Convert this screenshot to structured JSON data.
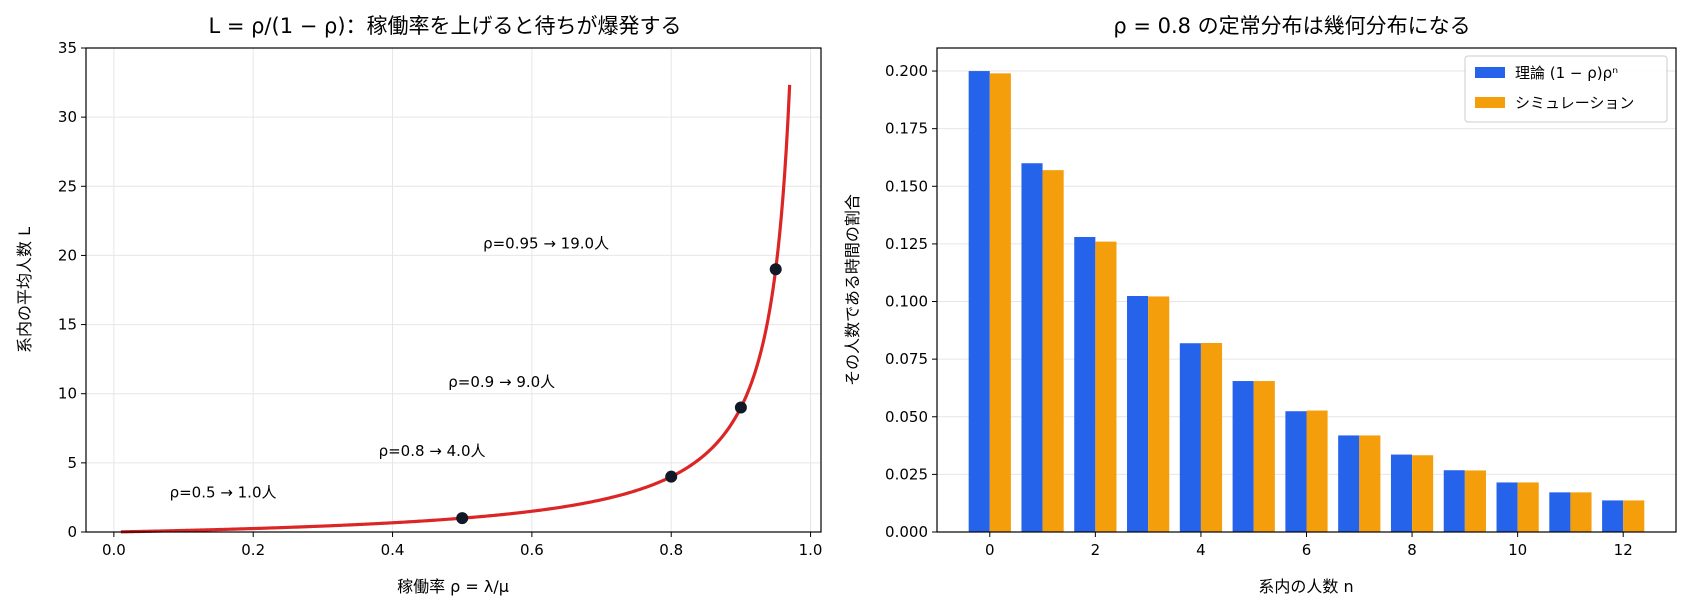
{
  "chart_data": [
    {
      "type": "line",
      "title": "L = ρ/(1 − ρ)：稼働率を上げると待ちが爆発する",
      "xlabel": "稼働率 ρ = λ/μ",
      "ylabel": "系内の平均人数 L",
      "xlim": [
        -0.04,
        1.015
      ],
      "ylim": [
        0,
        35
      ],
      "xticks": [
        "0.0",
        "0.2",
        "0.4",
        "0.6",
        "0.8",
        "1.0"
      ],
      "yticks": [
        "0",
        "5",
        "10",
        "15",
        "20",
        "25",
        "30",
        "35"
      ],
      "grid": true,
      "curve_color": "#dc2626",
      "curve_x_range": [
        0.01,
        0.97
      ],
      "points": [
        {
          "x": 0.5,
          "y": 1.0,
          "label": "ρ=0.5 → 1.0人",
          "label_x": 0.08,
          "label_y": 2.5
        },
        {
          "x": 0.8,
          "y": 4.0,
          "label": "ρ=0.8 → 4.0人",
          "label_x": 0.38,
          "label_y": 5.5
        },
        {
          "x": 0.9,
          "y": 9.0,
          "label": "ρ=0.9 → 9.0人",
          "label_x": 0.48,
          "label_y": 10.5
        },
        {
          "x": 0.95,
          "y": 19.0,
          "label": "ρ=0.95 → 19.0人",
          "label_x": 0.53,
          "label_y": 20.5
        }
      ],
      "point_color": "#111827"
    },
    {
      "type": "bar",
      "title": "ρ = 0.8 の定常分布は幾何分布になる",
      "xlabel": "系内の人数 n",
      "ylabel": "その人数である時間の割合",
      "xlim": [
        -1,
        13
      ],
      "ylim": [
        0,
        0.21
      ],
      "xticks": [
        "0",
        "2",
        "4",
        "6",
        "8",
        "10",
        "12"
      ],
      "yticks": [
        "0.000",
        "0.025",
        "0.050",
        "0.075",
        "0.100",
        "0.125",
        "0.150",
        "0.175",
        "0.200"
      ],
      "grid": true,
      "legend_position": "top-right",
      "categories": [
        0,
        1,
        2,
        3,
        4,
        5,
        6,
        7,
        8,
        9,
        10,
        11,
        12
      ],
      "series": [
        {
          "name": "理論 (1 − ρ)ρⁿ",
          "color": "#2563eb",
          "values": [
            0.2,
            0.16,
            0.128,
            0.1024,
            0.0819,
            0.0655,
            0.0524,
            0.0419,
            0.0336,
            0.0268,
            0.0215,
            0.0172,
            0.0137
          ]
        },
        {
          "name": "シミュレーション",
          "color": "#f59e0b",
          "values": [
            0.199,
            0.157,
            0.126,
            0.1022,
            0.082,
            0.0655,
            0.0527,
            0.0419,
            0.0333,
            0.0267,
            0.0215,
            0.0172,
            0.0137
          ]
        }
      ]
    }
  ]
}
